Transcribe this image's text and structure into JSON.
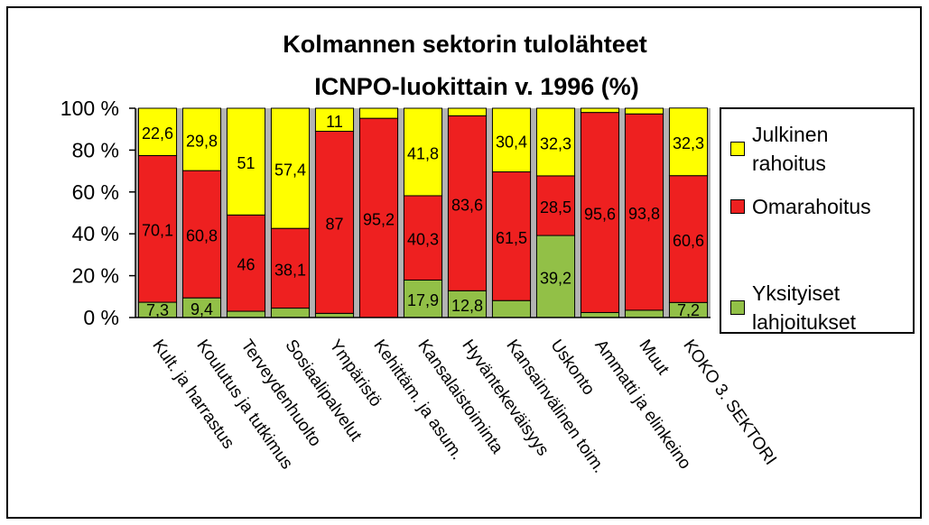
{
  "chart_data": {
    "type": "stacked_bar",
    "title": "Kolmannen sektorin tulolähteet",
    "subtitle": "ICNPO-luokittain v. 1996 (%)",
    "categories": [
      "Kult. ja harrastus",
      "Koulutus ja tutkimus",
      "Terveydenhuolto",
      "Sosiaalipalvelut",
      "Ympäristö",
      "Kehittäm. ja asum.",
      "Kansalaistoiminta",
      "Hyväntekeväisyys",
      "Kansainvälinen toim.",
      "Uskonto",
      "Ammatti ja elinkeino",
      "Muut",
      "KOKO 3. SEKTORI"
    ],
    "series": [
      {
        "name": "Yksityiset lahjoitukset",
        "color": "#92c047",
        "values": [
          7.3,
          9.4,
          3,
          4.5,
          2,
          0,
          17.9,
          12.8,
          8.1,
          39.2,
          2.4,
          3.5,
          7.2
        ],
        "value_labels": [
          "7,3",
          "9,4",
          null,
          null,
          null,
          null,
          "17,9",
          "12,8",
          null,
          "39,2",
          null,
          null,
          "7,2"
        ]
      },
      {
        "name": "Omarahoitus",
        "color": "#ee2020",
        "values": [
          70.1,
          60.8,
          46,
          38.1,
          87,
          95.2,
          40.3,
          83.6,
          61.5,
          28.5,
          95.6,
          93.8,
          60.6
        ],
        "value_labels": [
          "70,1",
          "60,8",
          "46",
          "38,1",
          "87",
          "95,2",
          "40,3",
          "83,6",
          "61,5",
          "28,5",
          "95,6",
          "93,8",
          "60,6"
        ]
      },
      {
        "name": "Julkinen rahoitus",
        "color": "#ffff00",
        "values": [
          22.6,
          29.8,
          51,
          57.4,
          11,
          4.8,
          41.8,
          3.6,
          30.4,
          32.3,
          2,
          2.7,
          32.3
        ],
        "value_labels": [
          "22,6",
          "29,8",
          "51",
          "57,4",
          "11",
          null,
          "41,8",
          null,
          "30,4",
          "32,3",
          null,
          null,
          "32,3"
        ]
      }
    ],
    "ylim": [
      0,
      100
    ],
    "yticks": [
      {
        "value": 0,
        "label": "0 %"
      },
      {
        "value": 20,
        "label": "20 %"
      },
      {
        "value": 40,
        "label": "40 %"
      },
      {
        "value": 60,
        "label": "60 %"
      },
      {
        "value": 80,
        "label": "80 %"
      },
      {
        "value": 100,
        "label": "100 %"
      }
    ],
    "legend": "right"
  }
}
